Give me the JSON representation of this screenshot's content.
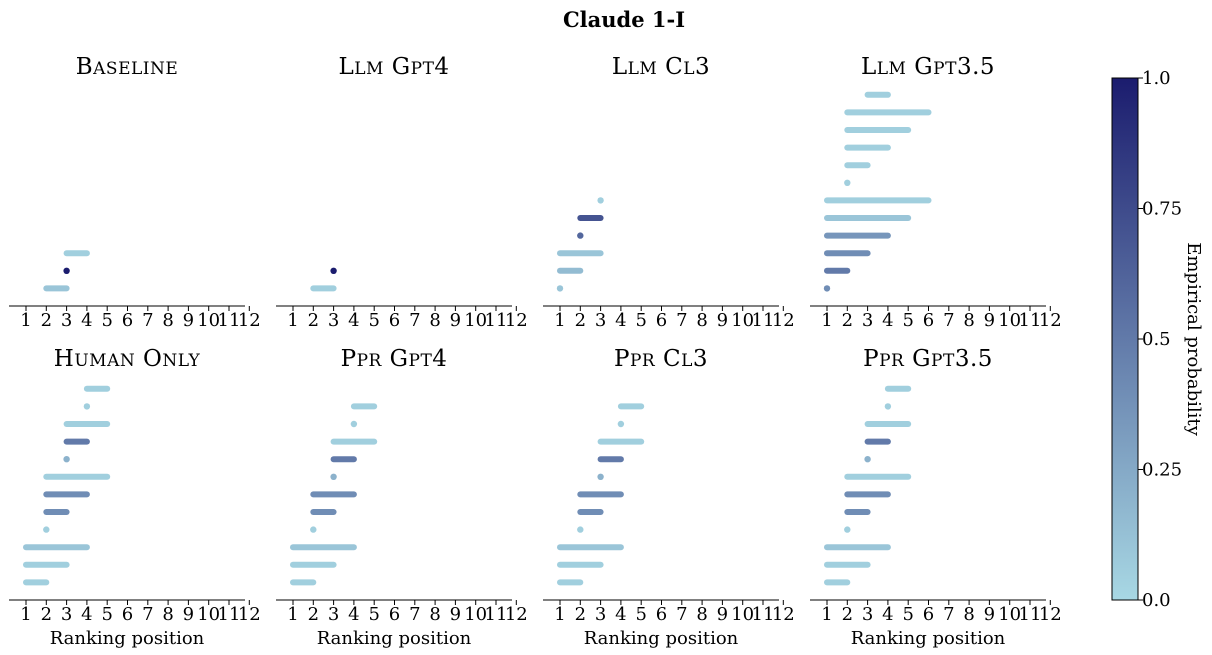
{
  "chart_data": {
    "title": "Claude 1-I",
    "type": "range_dot",
    "xlabel": "Ranking position",
    "x_ticks": [
      "1",
      "2",
      "3",
      "4",
      "5",
      "6",
      "7",
      "8",
      "9",
      "10",
      "11",
      "12"
    ],
    "colorbar": {
      "label": "Empirical probability",
      "range": [
        0.0,
        1.0
      ],
      "ticks": [
        "0.0",
        "0.25",
        "0.5",
        "0.75",
        "1.0"
      ],
      "color_low": "#a8d8e4",
      "color_high": "#1b1c6e"
    },
    "panels": [
      {
        "title": "Baseline",
        "ranges": [
          {
            "lo": 2,
            "hi": 3,
            "p": 0.1
          },
          {
            "lo": 3,
            "hi": 3,
            "p": 1.0
          },
          {
            "lo": 3,
            "hi": 4,
            "p": 0.05
          }
        ]
      },
      {
        "title": "Llm Gpt4",
        "ranges": [
          {
            "lo": 2,
            "hi": 3,
            "p": 0.05
          },
          {
            "lo": 3,
            "hi": 3,
            "p": 1.0
          }
        ]
      },
      {
        "title": "Llm Cl3",
        "ranges": [
          {
            "lo": 1,
            "hi": 1,
            "p": 0.1
          },
          {
            "lo": 1,
            "hi": 2,
            "p": 0.15
          },
          {
            "lo": 1,
            "hi": 3,
            "p": 0.1
          },
          {
            "lo": 2,
            "hi": 2,
            "p": 0.6
          },
          {
            "lo": 2,
            "hi": 3,
            "p": 0.7
          },
          {
            "lo": 3,
            "hi": 3,
            "p": 0.05
          }
        ]
      },
      {
        "title": "Llm Gpt3.5",
        "ranges": [
          {
            "lo": 1,
            "hi": 1,
            "p": 0.4
          },
          {
            "lo": 1,
            "hi": 2,
            "p": 0.5
          },
          {
            "lo": 1,
            "hi": 3,
            "p": 0.4
          },
          {
            "lo": 1,
            "hi": 4,
            "p": 0.35
          },
          {
            "lo": 1,
            "hi": 5,
            "p": 0.1
          },
          {
            "lo": 1,
            "hi": 6,
            "p": 0.05
          },
          {
            "lo": 2,
            "hi": 2,
            "p": 0.05
          },
          {
            "lo": 2,
            "hi": 3,
            "p": 0.05
          },
          {
            "lo": 2,
            "hi": 4,
            "p": 0.05
          },
          {
            "lo": 2,
            "hi": 5,
            "p": 0.05
          },
          {
            "lo": 2,
            "hi": 6,
            "p": 0.05
          },
          {
            "lo": 3,
            "hi": 4,
            "p": 0.05
          }
        ]
      },
      {
        "title": "Human Only",
        "ranges": [
          {
            "lo": 1,
            "hi": 2,
            "p": 0.05
          },
          {
            "lo": 1,
            "hi": 3,
            "p": 0.05
          },
          {
            "lo": 1,
            "hi": 4,
            "p": 0.1
          },
          {
            "lo": 2,
            "hi": 2,
            "p": 0.05
          },
          {
            "lo": 2,
            "hi": 3,
            "p": 0.4
          },
          {
            "lo": 2,
            "hi": 4,
            "p": 0.4
          },
          {
            "lo": 2,
            "hi": 5,
            "p": 0.05
          },
          {
            "lo": 3,
            "hi": 3,
            "p": 0.2
          },
          {
            "lo": 3,
            "hi": 4,
            "p": 0.5
          },
          {
            "lo": 3,
            "hi": 5,
            "p": 0.05
          },
          {
            "lo": 4,
            "hi": 4,
            "p": 0.05
          },
          {
            "lo": 4,
            "hi": 5,
            "p": 0.05
          }
        ]
      },
      {
        "title": "Ppr Gpt4",
        "ranges": [
          {
            "lo": 1,
            "hi": 2,
            "p": 0.05
          },
          {
            "lo": 1,
            "hi": 3,
            "p": 0.05
          },
          {
            "lo": 1,
            "hi": 4,
            "p": 0.1
          },
          {
            "lo": 2,
            "hi": 2,
            "p": 0.05
          },
          {
            "lo": 2,
            "hi": 3,
            "p": 0.4
          },
          {
            "lo": 2,
            "hi": 4,
            "p": 0.4
          },
          {
            "lo": 3,
            "hi": 3,
            "p": 0.2
          },
          {
            "lo": 3,
            "hi": 4,
            "p": 0.5
          },
          {
            "lo": 3,
            "hi": 5,
            "p": 0.05
          },
          {
            "lo": 4,
            "hi": 4,
            "p": 0.05
          },
          {
            "lo": 4,
            "hi": 5,
            "p": 0.05
          }
        ]
      },
      {
        "title": "Ppr Cl3",
        "ranges": [
          {
            "lo": 1,
            "hi": 2,
            "p": 0.05
          },
          {
            "lo": 1,
            "hi": 3,
            "p": 0.05
          },
          {
            "lo": 1,
            "hi": 4,
            "p": 0.1
          },
          {
            "lo": 2,
            "hi": 2,
            "p": 0.05
          },
          {
            "lo": 2,
            "hi": 3,
            "p": 0.4
          },
          {
            "lo": 2,
            "hi": 4,
            "p": 0.4
          },
          {
            "lo": 3,
            "hi": 3,
            "p": 0.2
          },
          {
            "lo": 3,
            "hi": 4,
            "p": 0.5
          },
          {
            "lo": 3,
            "hi": 5,
            "p": 0.05
          },
          {
            "lo": 4,
            "hi": 4,
            "p": 0.05
          },
          {
            "lo": 4,
            "hi": 5,
            "p": 0.05
          }
        ]
      },
      {
        "title": "Ppr Gpt3.5",
        "ranges": [
          {
            "lo": 1,
            "hi": 2,
            "p": 0.05
          },
          {
            "lo": 1,
            "hi": 3,
            "p": 0.05
          },
          {
            "lo": 1,
            "hi": 4,
            "p": 0.1
          },
          {
            "lo": 2,
            "hi": 2,
            "p": 0.05
          },
          {
            "lo": 2,
            "hi": 3,
            "p": 0.4
          },
          {
            "lo": 2,
            "hi": 4,
            "p": 0.4
          },
          {
            "lo": 2,
            "hi": 5,
            "p": 0.05
          },
          {
            "lo": 3,
            "hi": 3,
            "p": 0.2
          },
          {
            "lo": 3,
            "hi": 4,
            "p": 0.5
          },
          {
            "lo": 3,
            "hi": 5,
            "p": 0.05
          },
          {
            "lo": 4,
            "hi": 4,
            "p": 0.05
          },
          {
            "lo": 4,
            "hi": 5,
            "p": 0.05
          }
        ]
      }
    ]
  }
}
